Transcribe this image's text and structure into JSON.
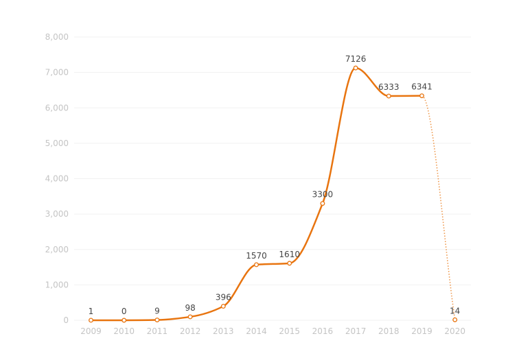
{
  "chart_data": {
    "type": "line",
    "title": "",
    "xlabel": "",
    "ylabel": "",
    "ylim": [
      0,
      8000
    ],
    "ytick_values": [
      0,
      1000,
      2000,
      3000,
      4000,
      5000,
      6000,
      7000,
      8000
    ],
    "ytick_labels": [
      "0",
      "1,000",
      "2,000",
      "3,000",
      "4,000",
      "5,000",
      "6,000",
      "7,000",
      "8,000"
    ],
    "categories": [
      "2009",
      "2010",
      "2011",
      "2012",
      "2013",
      "2014",
      "2015",
      "2016",
      "2017",
      "2018",
      "2019",
      "2020"
    ],
    "series": [
      {
        "name": "value",
        "values": [
          1,
          0,
          9,
          98,
          396,
          1570,
          1610,
          3300,
          7126,
          6333,
          6341,
          14
        ],
        "labels": [
          "1",
          "0",
          "9",
          "98",
          "396",
          "1570",
          "1610",
          "3300",
          "7126",
          "6333",
          "6341",
          "14"
        ],
        "color": "#e8740f",
        "dotted_from_index": 10
      }
    ],
    "grid": true,
    "legend": "none"
  }
}
